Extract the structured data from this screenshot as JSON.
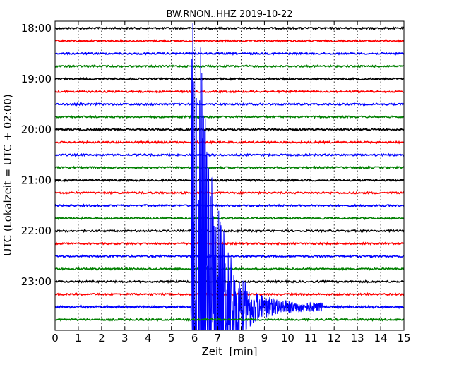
{
  "chart_data": {
    "type": "line",
    "title": "BW.RNON..HHZ 2019-10-22",
    "xlabel": "Zeit  [min]",
    "ylabel": "UTC (Lokalzeit = UTC + 02:00)",
    "xlim": [
      0,
      15
    ],
    "x_ticks": [
      "0",
      "1",
      "2",
      "3",
      "4",
      "5",
      "6",
      "7",
      "8",
      "9",
      "10",
      "11",
      "12",
      "13",
      "14",
      "15"
    ],
    "y_ticks": [
      "18:00",
      "19:00",
      "20:00",
      "21:00",
      "22:00",
      "23:00"
    ],
    "grid": "vertical-dotted",
    "trace_colors": [
      "#000000",
      "#ff0000",
      "#0000ff",
      "#008000"
    ],
    "traces": [
      {
        "start": "18:00"
      },
      {
        "start": "18:15"
      },
      {
        "start": "18:30"
      },
      {
        "start": "18:45"
      },
      {
        "start": "19:00"
      },
      {
        "start": "19:15"
      },
      {
        "start": "19:30"
      },
      {
        "start": "19:45"
      },
      {
        "start": "20:00"
      },
      {
        "start": "20:15"
      },
      {
        "start": "20:30"
      },
      {
        "start": "20:45"
      },
      {
        "start": "21:00"
      },
      {
        "start": "21:15"
      },
      {
        "start": "21:30"
      },
      {
        "start": "21:45"
      },
      {
        "start": "22:00"
      },
      {
        "start": "22:15"
      },
      {
        "start": "22:30"
      },
      {
        "start": "22:45"
      },
      {
        "start": "23:00"
      },
      {
        "start": "23:15"
      },
      {
        "start": "23:30"
      },
      {
        "start": "23:45"
      }
    ],
    "event": {
      "trace_index": 22,
      "onset_min": 5.85,
      "peak_min": 6.2,
      "coda_end_min": 11.5
    }
  }
}
